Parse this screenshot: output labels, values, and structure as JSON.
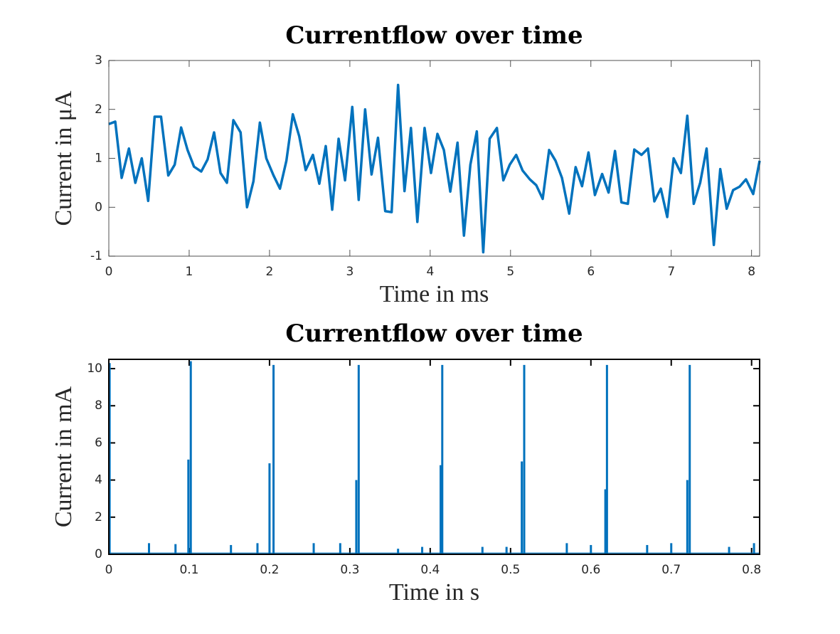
{
  "chart_data": [
    {
      "type": "line",
      "title": "Currentflow over time",
      "x_label": "Time in ms",
      "y_label": "Current in μA",
      "xlim": [
        0,
        8.1
      ],
      "ylim": [
        -1,
        3
      ],
      "xticks": [
        0,
        1,
        2,
        3,
        4,
        5,
        6,
        7,
        8
      ],
      "yticks": [
        -1,
        0,
        1,
        2,
        3
      ],
      "series": [
        {
          "color": "#0072bd",
          "x": [
            0,
            0.08,
            0.16,
            0.25,
            0.33,
            0.41,
            0.49,
            0.57,
            0.65,
            0.74,
            0.82,
            0.9,
            0.98,
            1.06,
            1.15,
            1.23,
            1.31,
            1.39,
            1.47,
            1.55,
            1.64,
            1.72,
            1.8,
            1.88,
            1.96,
            2.05,
            2.13,
            2.21,
            2.29,
            2.37,
            2.45,
            2.54,
            2.62,
            2.7,
            2.78,
            2.86,
            2.94,
            3.03,
            3.11,
            3.19,
            3.27,
            3.35,
            3.44,
            3.52,
            3.6,
            3.68,
            3.76,
            3.84,
            3.93,
            4.01,
            4.09,
            4.17,
            4.25,
            4.34,
            4.42,
            4.5,
            4.58,
            4.66,
            4.74,
            4.83,
            4.91,
            4.99,
            5.07,
            5.15,
            5.24,
            5.32,
            5.4,
            5.48,
            5.56,
            5.64,
            5.73,
            5.81,
            5.89,
            5.97,
            6.05,
            6.14,
            6.22,
            6.3,
            6.38,
            6.46,
            6.54,
            6.63,
            6.71,
            6.79,
            6.87,
            6.95,
            7.03,
            7.12,
            7.2,
            7.28,
            7.36,
            7.44,
            7.53,
            7.61,
            7.69,
            7.77,
            7.85,
            7.93,
            8.02,
            8.1
          ],
          "values": [
            1.7,
            1.75,
            0.6,
            1.2,
            0.5,
            1.0,
            0.13,
            1.85,
            1.85,
            0.65,
            0.87,
            1.63,
            1.17,
            0.83,
            0.73,
            0.98,
            1.53,
            0.7,
            0.5,
            1.78,
            1.53,
            0.0,
            0.53,
            1.73,
            1.0,
            0.65,
            0.38,
            0.95,
            1.9,
            1.45,
            0.76,
            1.07,
            0.48,
            1.25,
            -0.05,
            1.4,
            0.55,
            2.05,
            0.15,
            2.0,
            0.67,
            1.42,
            -0.08,
            -0.1,
            2.5,
            0.33,
            1.62,
            -0.3,
            1.62,
            0.7,
            1.5,
            1.17,
            0.32,
            1.32,
            -0.58,
            0.87,
            1.55,
            -0.92,
            1.4,
            1.62,
            0.55,
            0.87,
            1.07,
            0.75,
            0.57,
            0.45,
            0.17,
            1.17,
            0.95,
            0.6,
            -0.13,
            0.82,
            0.43,
            1.12,
            0.25,
            0.68,
            0.3,
            1.15,
            0.1,
            0.07,
            1.18,
            1.07,
            1.2,
            0.12,
            0.38,
            -0.2,
            1.0,
            0.7,
            1.87,
            0.07,
            0.5,
            1.2,
            -0.77,
            0.78,
            -0.03,
            0.35,
            0.42,
            0.57,
            0.27,
            0.95
          ]
        }
      ]
    },
    {
      "type": "stem",
      "title": "Currentflow over time",
      "x_label": "Time in s",
      "y_label": "Current in mA",
      "xlim": [
        0,
        0.81
      ],
      "ylim": [
        0,
        10.5
      ],
      "xticks": [
        0,
        0.1,
        0.2,
        0.3,
        0.4,
        0.5,
        0.6,
        0.7,
        0.8
      ],
      "yticks": [
        0,
        2,
        4,
        6,
        8,
        10
      ],
      "series": [
        {
          "color": "#0072bd",
          "x": [
            0.001,
            0.05,
            0.083,
            0.099,
            0.102,
            0.152,
            0.185,
            0.2,
            0.205,
            0.255,
            0.288,
            0.308,
            0.311,
            0.36,
            0.39,
            0.413,
            0.415,
            0.465,
            0.495,
            0.514,
            0.517,
            0.57,
            0.6,
            0.618,
            0.62,
            0.67,
            0.7,
            0.72,
            0.723,
            0.772,
            0.803
          ],
          "values": [
            10.3,
            0.6,
            0.55,
            5.1,
            10.4,
            0.5,
            0.6,
            4.9,
            10.2,
            0.6,
            0.6,
            4.0,
            10.2,
            0.3,
            0.4,
            4.8,
            10.2,
            0.4,
            0.4,
            5.0,
            10.2,
            0.6,
            0.5,
            3.5,
            10.2,
            0.5,
            0.6,
            4.0,
            10.2,
            0.4,
            0.6
          ]
        }
      ]
    }
  ]
}
